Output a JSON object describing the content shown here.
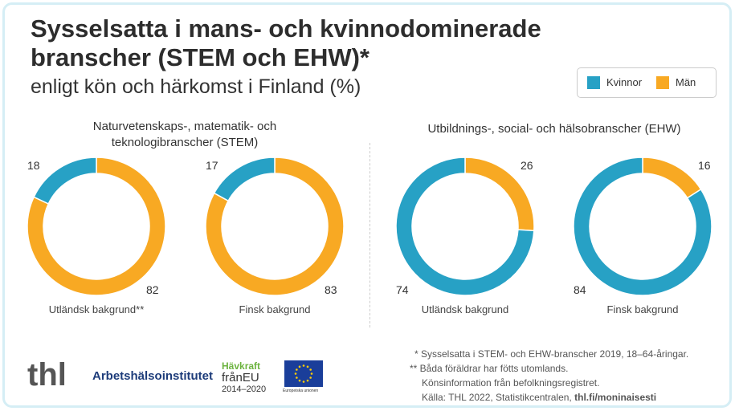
{
  "title_line1": "Sysselsatta i mans- och kvinnodominerade",
  "title_line2": "branscher (STEM och EHW)*",
  "subtitle": "enligt kön och härkomst i Finland (%)",
  "colors": {
    "Kvinnor": "#27a1c5",
    "Män": "#f8a923"
  },
  "chart_data": [
    {
      "type": "pie",
      "group": "Naturvetenskaps-, matematik- och teknologibranscher (STEM)",
      "label": "Utländsk bakgrund**",
      "values": {
        "Kvinnor": 18,
        "Män": 82
      }
    },
    {
      "type": "pie",
      "group": "Naturvetenskaps-, matematik- och teknologibranscher (STEM)",
      "label": "Finsk bakgrund",
      "values": {
        "Kvinnor": 17,
        "Män": 83
      }
    },
    {
      "type": "pie",
      "group": "Utbildnings-, social- och hälsobranscher (EHW)",
      "label": "Utländsk bakgrund",
      "values": {
        "Kvinnor": 74,
        "Män": 26
      }
    },
    {
      "type": "pie",
      "group": "Utbildnings-, social- och hälsobranscher (EHW)",
      "label": "Finsk bakgrund",
      "values": {
        "Kvinnor": 84,
        "Män": 16
      }
    }
  ],
  "legend": {
    "kvinnor": "Kvinnor",
    "man": "Män"
  },
  "stem_title1": "Naturvetenskaps-, matematik- och",
  "stem_title2": "teknologibranscher (STEM)",
  "ehw_title": "Utbildnings-, social- och hälsobranscher (EHW)",
  "footnotes": {
    "f1": "* Sysselsatta i STEM- och EHW-branscher 2019, 18–64-åringar.",
    "f2": "** Båda föräldrar har fötts utomlands.",
    "f3": "Könsinformation från befolkningsregistret.",
    "f4": "Källa: THL 2022, Statistikcentralen,",
    "f4b": "thl.fi/moninaisesti"
  },
  "logos": {
    "thl": "thl",
    "ahi": "Arbetshälsoinstitutet",
    "hav1": "Hävkraft",
    "hav2": "frånEU",
    "hav3": "2014–2020",
    "eu": "Europeiska unionen"
  }
}
